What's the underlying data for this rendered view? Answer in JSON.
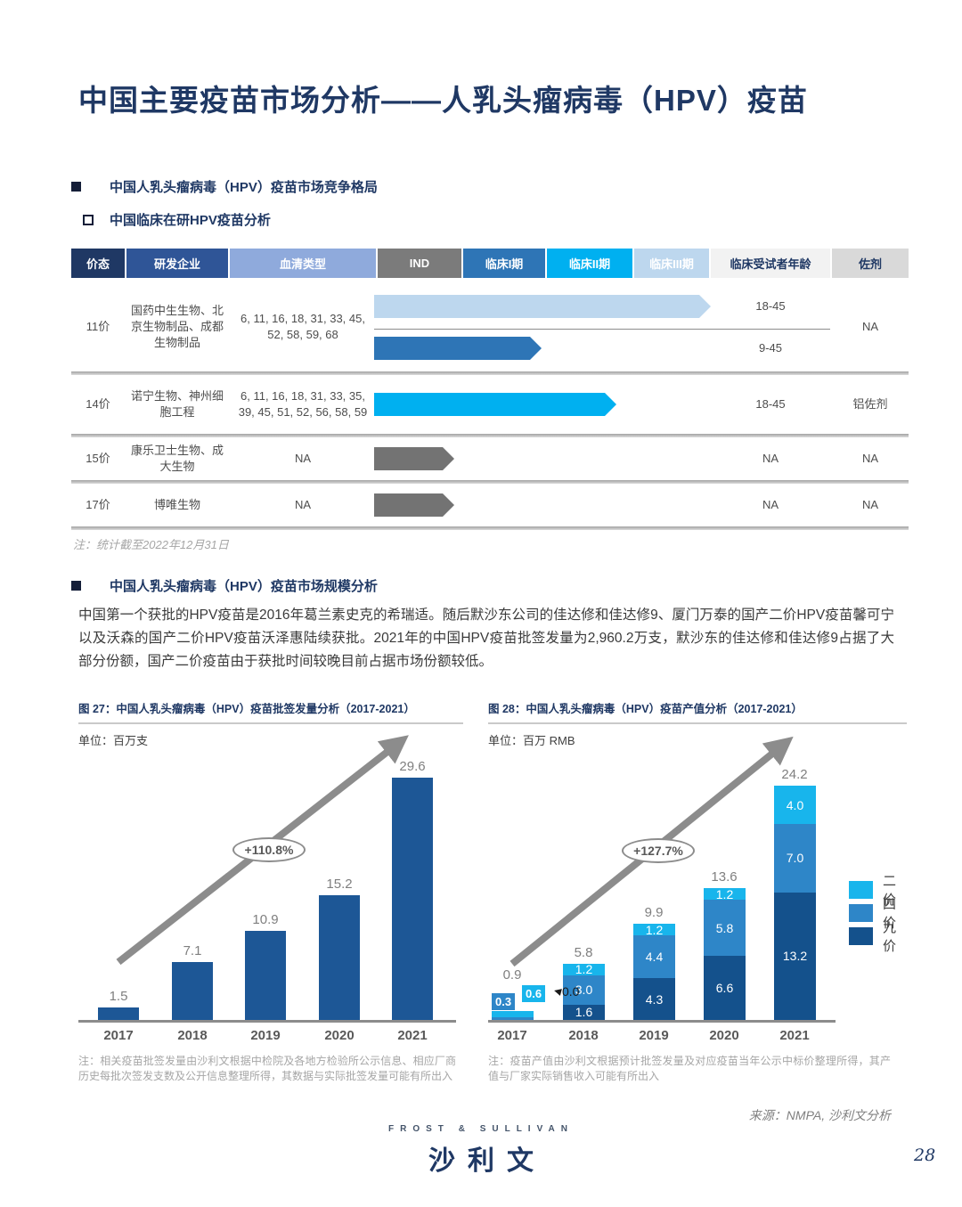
{
  "page": {
    "title": "中国主要疫苗市场分析——人乳头瘤病毒（HPV）疫苗",
    "page_number": "28"
  },
  "sections": {
    "competitive": "中国人乳头瘤病毒（HPV）疫苗市场竞争格局",
    "clinical_sub": "中国临床在研HPV疫苗分析",
    "market_size": "中国人乳头瘤病毒（HPV）疫苗市场规模分析"
  },
  "table": {
    "headers": [
      {
        "label": "价态",
        "bg": "#1F3864",
        "fg": "#FFFFFF"
      },
      {
        "label": "研发企业",
        "bg": "#2F5597",
        "fg": "#FFFFFF"
      },
      {
        "label": "血清类型",
        "bg": "#8FAADC",
        "fg": "#FFFFFF"
      },
      {
        "label": "IND",
        "bg": "#7B7B7B",
        "fg": "#FFFFFF"
      },
      {
        "label": "临床I期",
        "bg": "#2E75B6",
        "fg": "#FFFFFF"
      },
      {
        "label": "临床II期",
        "bg": "#00B0F0",
        "fg": "#FFFFFF"
      },
      {
        "label": "临床III期",
        "bg": "#BDD7EE",
        "fg": "#FFFFFF"
      },
      {
        "label": "临床受试者年龄",
        "bg": "#F2F2F2",
        "fg": "#1F3864"
      },
      {
        "label": "佐剂",
        "bg": "#D9D9D9",
        "fg": "#1F3864"
      }
    ],
    "rows": [
      {
        "price": "11价",
        "company": "国药中生生物、北京生物制品、成都生物制品",
        "serotypes": "6, 11, 16, 18, 31, 33, 45, 52, 58, 59, 68",
        "arrows": [
          {
            "phase_end": "临床III期",
            "color": "#BDD7EE",
            "age": "18-45"
          },
          {
            "phase_end": "临床I期",
            "color": "#2E75B6",
            "age": "9-45"
          }
        ],
        "adjuvant": "NA"
      },
      {
        "price": "14价",
        "company": "诺宁生物、神州细胞工程",
        "serotypes": "6, 11, 16, 18, 31, 33, 35, 39, 45, 51, 52, 56, 58, 59",
        "arrows": [
          {
            "phase_end": "临床II期",
            "color": "#00B0F0",
            "age": "18-45"
          }
        ],
        "adjuvant": "铝佐剂"
      },
      {
        "price": "15价",
        "company": "康乐卫士生物、成大生物",
        "serotypes": "NA",
        "arrows": [
          {
            "phase_end": "IND",
            "color": "#737373",
            "age": "NA"
          }
        ],
        "adjuvant": "NA"
      },
      {
        "price": "17价",
        "company": "博唯生物",
        "serotypes": "NA",
        "arrows": [
          {
            "phase_end": "IND",
            "color": "#737373",
            "age": "NA"
          }
        ],
        "adjuvant": "NA"
      }
    ],
    "note": "注：统计截至2022年12月31日"
  },
  "market_paragraph": "中国第一个获批的HPV疫苗是2016年葛兰素史克的希瑞适。随后默沙东公司的佳达修和佳达修9、厦门万泰的国产二价HPV疫苗馨可宁以及沃森的国产二价HPV疫苗沃泽惠陆续获批。2021年的中国HPV疫苗批签发量为2,960.2万支，默沙东的佳达修和佳达修9占据了大部分份额，国产二价疫苗由于获批时间较晚目前占据市场份额较低。",
  "chart_data": [
    {
      "type": "bar",
      "title": "图 27：中国人乳头瘤病毒（HPV）疫苗批签发量分析（2017-2021）",
      "unit": "单位：百万支",
      "categories": [
        "2017",
        "2018",
        "2019",
        "2020",
        "2021"
      ],
      "values": [
        1.5,
        7.1,
        10.9,
        15.2,
        29.6
      ],
      "bar_color": "#1D5796",
      "growth_label": "+110.8%",
      "ylim": [
        0,
        32
      ],
      "grid": false,
      "note": "注：相关疫苗批签发量由沙利文根据中检院及各地方检验所公示信息、相应厂商历史每批次签发支数及公开信息整理所得，其数据与实际批签发量可能有所出入"
    },
    {
      "type": "stacked-bar",
      "title": "图 28：中国人乳头瘤病毒（HPV）疫苗产值分析（2017-2021）",
      "unit": "单位：百万 RMB",
      "categories": [
        "2017",
        "2018",
        "2019",
        "2020",
        "2021"
      ],
      "series": [
        {
          "name": "九价",
          "color": "#14518C",
          "values": [
            0.0,
            1.6,
            4.3,
            6.6,
            13.2
          ]
        },
        {
          "name": "四价",
          "color": "#2E86C8",
          "values": [
            0.3,
            3.0,
            4.4,
            5.8,
            7.0
          ]
        },
        {
          "name": "二价",
          "color": "#18B5EC",
          "values": [
            0.6,
            1.2,
            1.2,
            1.2,
            4.0
          ]
        }
      ],
      "totals": [
        0.9,
        5.8,
        9.9,
        13.6,
        24.2
      ],
      "legend": [
        "二价",
        "四价",
        "九价"
      ],
      "legend_position": "right",
      "growth_label": "+127.7%",
      "ylim": [
        0,
        26
      ],
      "grid": false,
      "note": "注：疫苗产值由沙利文根据预计批签发量及对应疫苗当年公示中标价整理所得，其产值与厂家实际销售收入可能有所出入"
    }
  ],
  "source": "来源：NMPA, 沙利文分析",
  "logo": {
    "top": "FROST & SULLIVAN",
    "cn": "沙利文"
  }
}
